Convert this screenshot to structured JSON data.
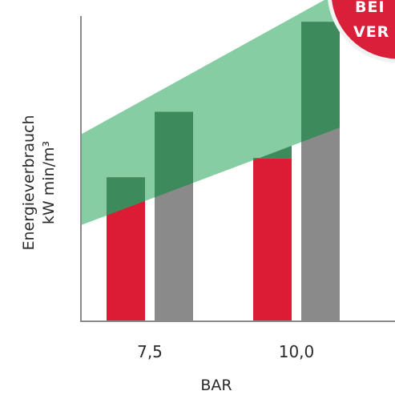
{
  "chart_data": {
    "type": "bar",
    "categories": [
      "7,5",
      "10,0"
    ],
    "series": [
      {
        "color": "#dc1c35",
        "values": [
          1.12,
          1.27
        ]
      },
      {
        "color": "#8a8a8a",
        "values": [
          1.63,
          2.33
        ]
      }
    ],
    "band": {
      "color": "#86cda3",
      "lower": [
        0.95,
        1.38
      ],
      "upper": [
        1.75,
        2.38
      ]
    },
    "band_overlap_color": "#3d8a5d",
    "xlabel": "BAR",
    "ylabel_lines": [
      "Energieverbrauch",
      "kW min/m³"
    ],
    "ylim": [
      0,
      2.45
    ],
    "grid": false,
    "badge": {
      "lines": [
        "BEI",
        "VER"
      ],
      "color": "#d91f3a"
    }
  }
}
